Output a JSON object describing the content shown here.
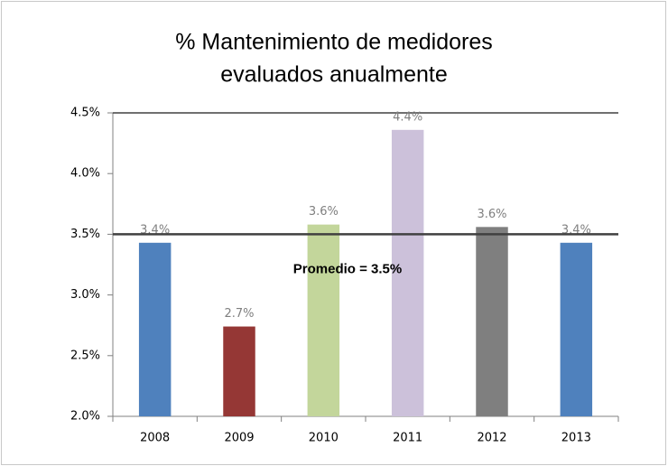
{
  "chart_data": {
    "type": "bar",
    "title": [
      "% Mantenimiento de medidores",
      "evaluados  anualmente"
    ],
    "categories": [
      "2008",
      "2009",
      "2010",
      "2011",
      "2012",
      "2013"
    ],
    "values": [
      3.43,
      2.74,
      3.58,
      4.36,
      3.56,
      3.43
    ],
    "value_labels": [
      "3.4%",
      "2.7%",
      "3.6%",
      "4.4%",
      "3.6%",
      "3.4%"
    ],
    "colors": [
      "#4f81bd",
      "#953735",
      "#c3d69b",
      "#ccc1da",
      "#7f7f7f",
      "#4f81bd"
    ],
    "ylim": [
      2.0,
      4.5
    ],
    "yticks": [
      {
        "value": 2.0,
        "label": "2.0%"
      },
      {
        "value": 2.5,
        "label": "2.5%"
      },
      {
        "value": 3.0,
        "label": "3.0%"
      },
      {
        "value": 3.5,
        "label": "3.5%"
      },
      {
        "value": 4.0,
        "label": "4.0%"
      },
      {
        "value": 4.5,
        "label": "4.5%"
      }
    ],
    "grid": false,
    "reference_line": {
      "value": 3.5,
      "label": "Promedio = 3.5%"
    }
  }
}
